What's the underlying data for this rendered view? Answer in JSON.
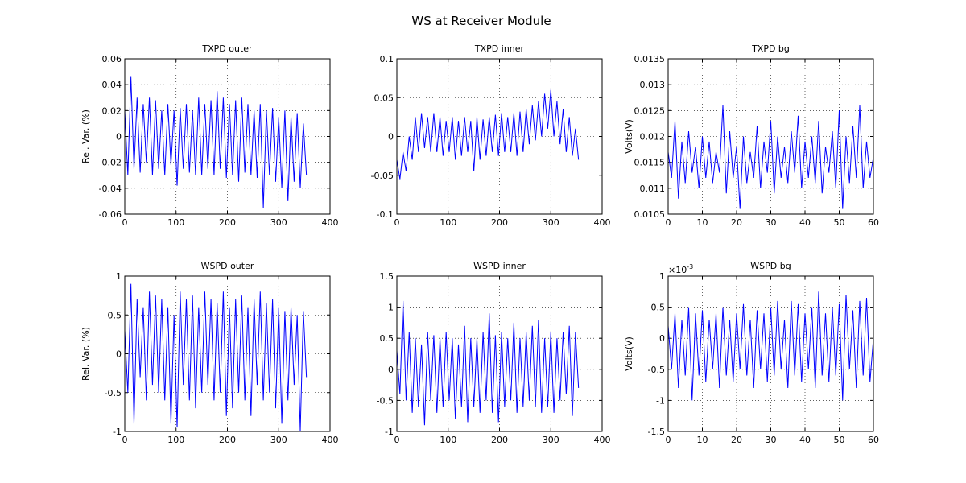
{
  "title": "WS at Receiver Module",
  "chart_data": [
    {
      "type": "line",
      "title": "TXPD outer",
      "ylabel": "Rel. Var. (%)",
      "color": "#0000ff",
      "grid": true,
      "xlim": [
        0,
        400
      ],
      "xticks": [
        0,
        100,
        200,
        300,
        400
      ],
      "ylim": [
        -0.06,
        0.06
      ],
      "yticks": [
        -0.06,
        -0.04,
        -0.02,
        0,
        0.02,
        0.04,
        0.06
      ],
      "x": [
        0,
        6,
        12,
        18,
        24,
        30,
        36,
        42,
        48,
        54,
        60,
        66,
        72,
        78,
        84,
        90,
        96,
        102,
        108,
        114,
        120,
        126,
        132,
        138,
        144,
        150,
        156,
        162,
        168,
        174,
        180,
        186,
        192,
        198,
        204,
        210,
        216,
        222,
        228,
        234,
        240,
        246,
        252,
        258,
        264,
        270,
        276,
        282,
        288,
        294,
        300,
        306,
        312,
        318,
        324,
        330,
        336,
        342,
        348,
        354
      ],
      "values": [
        0.02,
        -0.03,
        0.046,
        -0.025,
        0.03,
        -0.028,
        0.025,
        -0.02,
        0.03,
        -0.03,
        0.028,
        -0.025,
        0.02,
        -0.03,
        0.025,
        -0.022,
        0.02,
        -0.038,
        0.022,
        -0.025,
        0.025,
        -0.028,
        0.02,
        -0.03,
        0.03,
        -0.03,
        0.025,
        -0.025,
        0.028,
        -0.03,
        0.035,
        -0.025,
        0.03,
        -0.032,
        0.025,
        -0.03,
        0.028,
        -0.035,
        0.03,
        -0.028,
        0.025,
        -0.03,
        0.02,
        -0.032,
        0.025,
        -0.055,
        0.02,
        -0.03,
        0.022,
        -0.035,
        0.015,
        -0.04,
        0.02,
        -0.05,
        0.015,
        -0.035,
        0.018,
        -0.04,
        0.01,
        -0.03
      ]
    },
    {
      "type": "line",
      "title": "TXPD inner",
      "color": "#0000ff",
      "grid": true,
      "xlim": [
        0,
        400
      ],
      "xticks": [
        0,
        100,
        200,
        300,
        400
      ],
      "ylim": [
        -0.1,
        0.1
      ],
      "yticks": [
        -0.1,
        -0.05,
        0,
        0.05,
        0.1
      ],
      "x": [
        0,
        6,
        12,
        18,
        24,
        30,
        36,
        42,
        48,
        54,
        60,
        66,
        72,
        78,
        84,
        90,
        96,
        102,
        108,
        114,
        120,
        126,
        132,
        138,
        144,
        150,
        156,
        162,
        168,
        174,
        180,
        186,
        192,
        198,
        204,
        210,
        216,
        222,
        228,
        234,
        240,
        246,
        252,
        258,
        264,
        270,
        276,
        282,
        288,
        294,
        300,
        306,
        312,
        318,
        324,
        330,
        336,
        342,
        348,
        354
      ],
      "values": [
        -0.03,
        -0.055,
        -0.02,
        -0.045,
        0.0,
        -0.03,
        0.025,
        -0.02,
        0.03,
        -0.015,
        0.025,
        -0.02,
        0.03,
        -0.02,
        0.025,
        -0.025,
        0.02,
        -0.02,
        0.025,
        -0.03,
        0.02,
        -0.025,
        0.025,
        -0.02,
        0.02,
        -0.045,
        0.025,
        -0.03,
        0.022,
        -0.025,
        0.025,
        -0.02,
        0.028,
        -0.025,
        0.03,
        -0.02,
        0.025,
        -0.02,
        0.03,
        -0.025,
        0.032,
        -0.02,
        0.035,
        -0.01,
        0.04,
        -0.005,
        0.045,
        0.0,
        0.055,
        0.01,
        0.06,
        0.0,
        0.045,
        -0.01,
        0.035,
        -0.02,
        0.025,
        -0.025,
        0.01,
        -0.03
      ]
    },
    {
      "type": "line",
      "title": "TXPD bg",
      "ylabel": "Volts(V)",
      "color": "#0000ff",
      "grid": true,
      "xlim": [
        0,
        60
      ],
      "xticks": [
        0,
        10,
        20,
        30,
        40,
        50,
        60
      ],
      "ylim": [
        0.0105,
        0.0135
      ],
      "yticks": [
        0.0105,
        0.011,
        0.0115,
        0.012,
        0.0125,
        0.013,
        0.0135
      ],
      "x": [
        0,
        1,
        2,
        3,
        4,
        5,
        6,
        7,
        8,
        9,
        10,
        11,
        12,
        13,
        14,
        15,
        16,
        17,
        18,
        19,
        20,
        21,
        22,
        23,
        24,
        25,
        26,
        27,
        28,
        29,
        30,
        31,
        32,
        33,
        34,
        35,
        36,
        37,
        38,
        39,
        40,
        41,
        42,
        43,
        44,
        45,
        46,
        47,
        48,
        49,
        50,
        51,
        52,
        53,
        54,
        55,
        56,
        57,
        58,
        59,
        60
      ],
      "values": [
        0.0117,
        0.0112,
        0.0123,
        0.0108,
        0.0119,
        0.0111,
        0.0121,
        0.0113,
        0.0118,
        0.011,
        0.012,
        0.0112,
        0.0119,
        0.0111,
        0.0117,
        0.0113,
        0.0126,
        0.0109,
        0.0121,
        0.0112,
        0.0118,
        0.0106,
        0.012,
        0.0111,
        0.0117,
        0.0112,
        0.0122,
        0.011,
        0.0119,
        0.0113,
        0.0123,
        0.0109,
        0.012,
        0.0112,
        0.0118,
        0.0111,
        0.0121,
        0.0113,
        0.0124,
        0.011,
        0.0119,
        0.0112,
        0.012,
        0.0111,
        0.0123,
        0.0109,
        0.0118,
        0.0113,
        0.0121,
        0.011,
        0.0125,
        0.0106,
        0.012,
        0.0111,
        0.0122,
        0.0112,
        0.0126,
        0.011,
        0.0119,
        0.0112,
        0.0116
      ]
    },
    {
      "type": "line",
      "title": "WSPD outer",
      "ylabel": "Rel. Var. (%)",
      "color": "#0000ff",
      "grid": true,
      "xlim": [
        0,
        400
      ],
      "xticks": [
        0,
        100,
        200,
        300,
        400
      ],
      "ylim": [
        -1,
        1
      ],
      "yticks": [
        -1,
        -0.5,
        0,
        0.5,
        1
      ],
      "x": [
        0,
        6,
        12,
        18,
        24,
        30,
        36,
        42,
        48,
        54,
        60,
        66,
        72,
        78,
        84,
        90,
        96,
        102,
        108,
        114,
        120,
        126,
        132,
        138,
        144,
        150,
        156,
        162,
        168,
        174,
        180,
        186,
        192,
        198,
        204,
        210,
        216,
        222,
        228,
        234,
        240,
        246,
        252,
        258,
        264,
        270,
        276,
        282,
        288,
        294,
        300,
        306,
        312,
        318,
        324,
        330,
        336,
        342,
        348,
        354
      ],
      "values": [
        0.3,
        -0.5,
        0.9,
        -0.9,
        0.7,
        -0.3,
        0.6,
        -0.6,
        0.8,
        -0.4,
        0.75,
        -0.5,
        0.7,
        -0.6,
        0.6,
        -0.9,
        0.5,
        -0.95,
        0.8,
        -0.4,
        0.7,
        -0.6,
        0.75,
        -0.7,
        0.6,
        -0.5,
        0.8,
        -0.4,
        0.7,
        -0.6,
        0.65,
        -0.5,
        0.8,
        -0.8,
        0.6,
        -0.7,
        0.7,
        -0.5,
        0.75,
        -0.6,
        0.6,
        -0.8,
        0.7,
        -0.4,
        0.8,
        -0.6,
        0.65,
        -0.5,
        0.7,
        -0.7,
        0.6,
        -0.9,
        0.55,
        -0.6,
        0.6,
        -0.4,
        0.5,
        -1.0,
        0.55,
        -0.3
      ]
    },
    {
      "type": "line",
      "title": "WSPD inner",
      "color": "#0000ff",
      "grid": true,
      "xlim": [
        0,
        400
      ],
      "xticks": [
        0,
        100,
        200,
        300,
        400
      ],
      "ylim": [
        -1,
        1.5
      ],
      "yticks": [
        -1,
        -0.5,
        0,
        0.5,
        1,
        1.5
      ],
      "x": [
        0,
        6,
        12,
        18,
        24,
        30,
        36,
        42,
        48,
        54,
        60,
        66,
        72,
        78,
        84,
        90,
        96,
        102,
        108,
        114,
        120,
        126,
        132,
        138,
        144,
        150,
        156,
        162,
        168,
        174,
        180,
        186,
        192,
        198,
        204,
        210,
        216,
        222,
        228,
        234,
        240,
        246,
        252,
        258,
        264,
        270,
        276,
        282,
        288,
        294,
        300,
        306,
        312,
        318,
        324,
        330,
        336,
        342,
        348,
        354
      ],
      "values": [
        0.3,
        -0.4,
        1.1,
        -0.5,
        0.6,
        -0.7,
        0.5,
        -0.6,
        0.4,
        -0.9,
        0.6,
        -0.5,
        0.55,
        -0.7,
        0.5,
        -0.6,
        0.6,
        -0.5,
        0.5,
        -0.8,
        0.4,
        -0.6,
        0.7,
        -0.85,
        0.5,
        -0.6,
        0.5,
        -0.7,
        0.6,
        -0.5,
        0.9,
        -0.7,
        0.55,
        -0.85,
        0.6,
        -0.6,
        0.5,
        -0.5,
        0.75,
        -0.7,
        0.5,
        -0.6,
        0.6,
        -0.5,
        0.7,
        -0.6,
        0.8,
        -0.7,
        0.5,
        -0.6,
        0.6,
        -0.7,
        0.5,
        -0.5,
        0.6,
        -0.4,
        0.7,
        -0.75,
        0.6,
        -0.3
      ]
    },
    {
      "type": "line",
      "title": "WSPD bg",
      "ylabel": "Volts(V)",
      "y_multiplier": "×10",
      "y_multiplier_exponent": "-3",
      "color": "#0000ff",
      "grid": true,
      "xlim": [
        0,
        60
      ],
      "xticks": [
        0,
        10,
        20,
        30,
        40,
        50,
        60
      ],
      "ylim": [
        -1.5,
        1
      ],
      "yticks": [
        -1.5,
        -1,
        -0.5,
        0,
        0.5,
        1
      ],
      "x": [
        0,
        1,
        2,
        3,
        4,
        5,
        6,
        7,
        8,
        9,
        10,
        11,
        12,
        13,
        14,
        15,
        16,
        17,
        18,
        19,
        20,
        21,
        22,
        23,
        24,
        25,
        26,
        27,
        28,
        29,
        30,
        31,
        32,
        33,
        34,
        35,
        36,
        37,
        38,
        39,
        40,
        41,
        42,
        43,
        44,
        45,
        46,
        47,
        48,
        49,
        50,
        51,
        52,
        53,
        54,
        55,
        56,
        57,
        58,
        59,
        60
      ],
      "values": [
        0.2,
        -0.5,
        0.4,
        -0.8,
        0.3,
        -0.6,
        0.5,
        -1.0,
        0.4,
        -0.6,
        0.45,
        -0.7,
        0.3,
        -0.5,
        0.4,
        -0.8,
        0.5,
        -0.6,
        0.3,
        -0.7,
        0.4,
        -0.5,
        0.55,
        -0.6,
        0.3,
        -0.8,
        0.45,
        -0.5,
        0.4,
        -0.7,
        0.5,
        -0.6,
        0.6,
        -0.5,
        0.3,
        -0.8,
        0.6,
        -0.6,
        0.55,
        -0.7,
        0.4,
        -0.5,
        0.5,
        -0.8,
        0.75,
        -0.6,
        0.4,
        -0.7,
        0.5,
        -0.6,
        0.55,
        -1.0,
        0.7,
        -0.5,
        0.45,
        -0.8,
        0.6,
        -0.6,
        0.65,
        -0.7,
        0.0
      ]
    }
  ]
}
